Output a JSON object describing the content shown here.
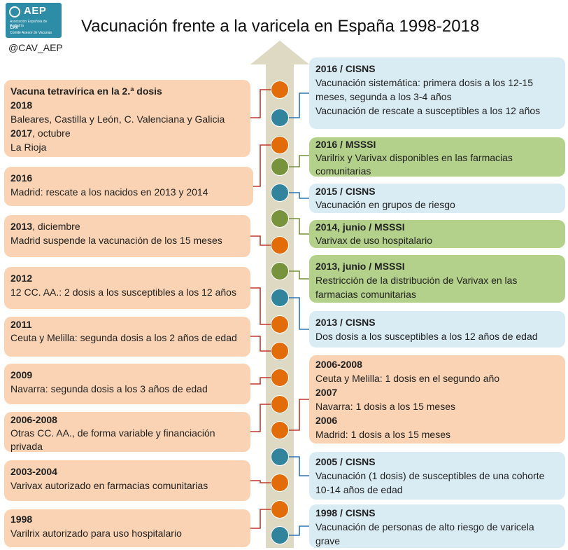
{
  "logo": {
    "name": "AEP",
    "subtitle": "Asociación Española de Pediatría",
    "cav": "CAV",
    "cav_sub": "Comité Asesor de Vacunas"
  },
  "handle": "@CAV_AEP",
  "title": "Vacunación frente a la varicela en España 1998-2018",
  "colors": {
    "orange_box": "#f9d3b3",
    "blue_box": "#d9ebf3",
    "green_box": "#b4d18b",
    "orange_dot": "#e36c0a",
    "blue_dot": "#31849b",
    "green_dot": "#77933c",
    "arrow": "#ddd9c3",
    "line_red": "#c0392b",
    "line_blue": "#2e75b6",
    "line_green": "#77933c"
  },
  "left_events": [
    {
      "id": "tetravirica",
      "lines": [
        {
          "bold": "Vacuna tetravírica en la 2.ª dosis",
          "text": ""
        },
        {
          "bold": "2018",
          "text": ""
        },
        {
          "bold": "",
          "text": "Baleares, Castilla y León, C. Valenciana y Galicia"
        },
        {
          "bold": "2017",
          "text": ", octubre"
        },
        {
          "bold": "",
          "text": "La Rioja"
        }
      ]
    },
    {
      "id": "madrid-2016",
      "lines": [
        {
          "bold": "2016",
          "text": ""
        },
        {
          "bold": "",
          "text": "Madrid: rescate a los nacidos en 2013 y 2014"
        }
      ]
    },
    {
      "id": "madrid-2013",
      "lines": [
        {
          "bold": "2013",
          "text": ", diciembre"
        },
        {
          "bold": "",
          "text": "Madrid suspende la vacunación de los 15 meses"
        }
      ]
    },
    {
      "id": "ccaa-2012",
      "lines": [
        {
          "bold": "2012",
          "text": ""
        },
        {
          "bold": "",
          "text": "12 CC. AA.: 2 dosis a los susceptibles a los 12 años"
        }
      ]
    },
    {
      "id": "ceuta-2011",
      "lines": [
        {
          "bold": "2011",
          "text": ""
        },
        {
          "bold": "",
          "text": "Ceuta y Melilla: segunda dosis a los 2 años de edad"
        }
      ]
    },
    {
      "id": "navarra-2009",
      "lines": [
        {
          "bold": "2009",
          "text": ""
        },
        {
          "bold": "",
          "text": "Navarra: segunda dosis a los 3 años de edad"
        }
      ]
    },
    {
      "id": "otras-2006",
      "lines": [
        {
          "bold": "2006-2008",
          "text": ""
        },
        {
          "bold": "",
          "text": "Otras CC. AA., de forma variable y financiación privada"
        }
      ]
    },
    {
      "id": "varivax-2003",
      "lines": [
        {
          "bold": "2003-2004",
          "text": ""
        },
        {
          "bold": "",
          "text": "Varivax autorizado en farmacias comunitarias"
        }
      ]
    },
    {
      "id": "varilrix-1998",
      "lines": [
        {
          "bold": "1998",
          "text": ""
        },
        {
          "bold": "",
          "text": "Varilrix autorizado para uso hospitalario"
        }
      ]
    }
  ],
  "right_events": [
    {
      "id": "cisns-2016",
      "lines": [
        {
          "bold": "2016 / CISNS",
          "text": ""
        },
        {
          "bold": "",
          "text": "Vacunación sistemática: primera dosis a los 12-15 meses, segunda a los 3-4 años"
        },
        {
          "bold": "",
          "text": "Vacunación de rescate a susceptibles a los 12 años"
        }
      ]
    },
    {
      "id": "msssi-2016",
      "lines": [
        {
          "bold": "2016 / MSSSI",
          "text": ""
        },
        {
          "bold": "",
          "text": "Varilrix y Varivax disponibles en las farmacias comunitarias"
        }
      ]
    },
    {
      "id": "cisns-2015",
      "lines": [
        {
          "bold": "2015 / CISNS",
          "text": ""
        },
        {
          "bold": "",
          "text": "Vacunación en grupos de riesgo"
        }
      ]
    },
    {
      "id": "msssi-2014",
      "lines": [
        {
          "bold": "2014, junio / MSSSI",
          "text": ""
        },
        {
          "bold": "",
          "text": "Varivax de uso hospitalario"
        }
      ]
    },
    {
      "id": "msssi-2013",
      "lines": [
        {
          "bold": "2013, junio / MSSSI",
          "text": ""
        },
        {
          "bold": "",
          "text": "Restricción de la distribución de Varivax en las farmacias comunitarias"
        }
      ]
    },
    {
      "id": "cisns-2013",
      "lines": [
        {
          "bold": "2013 / CISNS",
          "text": ""
        },
        {
          "bold": "",
          "text": "Dos dosis a los susceptibles a los 12 años de edad"
        }
      ]
    },
    {
      "id": "ccaa-2006-2008",
      "lines": [
        {
          "bold": "2006-2008",
          "text": ""
        },
        {
          "bold": "",
          "text": "Ceuta y Melilla: 1 dosis en el segundo año"
        },
        {
          "bold": "2007",
          "text": ""
        },
        {
          "bold": "",
          "text": "Navarra: 1 dosis a los 15 meses"
        },
        {
          "bold": "2006",
          "text": ""
        },
        {
          "bold": "",
          "text": "Madrid: 1 dosis a los 15 meses"
        }
      ]
    },
    {
      "id": "cisns-2005",
      "lines": [
        {
          "bold": "2005 / CISNS",
          "text": ""
        },
        {
          "bold": "",
          "text": "Vacunación (1 dosis) de susceptibles de una cohorte 10-14 años de edad"
        }
      ]
    },
    {
      "id": "cisns-1998",
      "lines": [
        {
          "bold": "1998 / CISNS",
          "text": ""
        },
        {
          "bold": "",
          "text": "Vacunación de personas de alto riesgo de varicela grave"
        }
      ]
    }
  ],
  "timeline_dots": [
    "orange",
    "blue",
    "orange",
    "green",
    "blue",
    "green",
    "orange",
    "green",
    "blue",
    "orange",
    "orange",
    "orange",
    "orange",
    "orange",
    "blue",
    "orange",
    "orange",
    "blue"
  ]
}
